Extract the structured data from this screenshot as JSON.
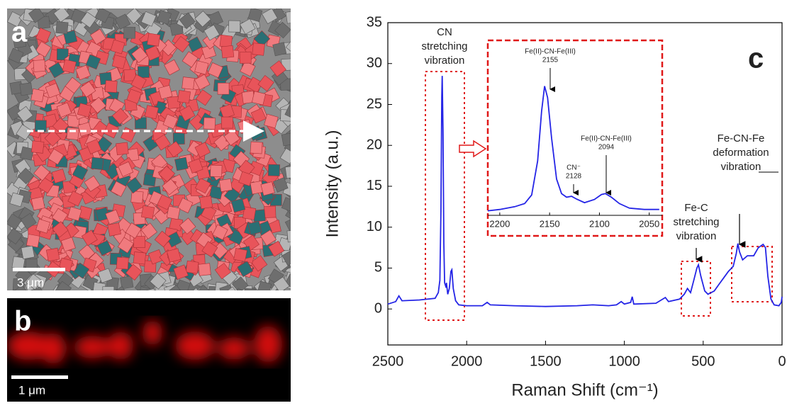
{
  "panels": {
    "a": {
      "label": "a",
      "scale_bar": "3 μm"
    },
    "b": {
      "label": "b",
      "scale_bar": "1 μm"
    },
    "c": {
      "label": "c"
    }
  },
  "chart_data": [
    {
      "type": "line",
      "x_label": "Raman Shift (cm⁻¹)",
      "y_label": "Intensity (a.u.)",
      "xlim": [
        2500,
        0
      ],
      "xticks": [
        2500,
        2000,
        1500,
        1000,
        500,
        0
      ],
      "ylim": [
        -4.4,
        35
      ],
      "yticks": [
        0,
        5,
        10,
        15,
        20,
        25,
        30,
        35
      ],
      "color": "#2424e6",
      "x": [
        2500,
        2450,
        2430,
        2410,
        2300,
        2200,
        2180,
        2170,
        2163,
        2158,
        2155,
        2150,
        2145,
        2140,
        2130,
        2128,
        2120,
        2110,
        2100,
        2094,
        2085,
        2070,
        2050,
        2000,
        1900,
        1870,
        1850,
        1700,
        1500,
        1300,
        1200,
        1100,
        1050,
        1020,
        1000,
        960,
        950,
        940,
        800,
        740,
        720,
        650,
        620,
        600,
        580,
        560,
        540,
        530,
        515,
        490,
        470,
        430,
        400,
        370,
        340,
        310,
        290,
        280,
        270,
        250,
        220,
        180,
        150,
        120,
        105,
        90,
        70,
        50,
        20,
        5,
        0
      ],
      "values": [
        0.6,
        0.9,
        1.6,
        1.0,
        1.1,
        1.3,
        2.0,
        3.5,
        12,
        26,
        28.5,
        22,
        8,
        3.2,
        2.6,
        3.2,
        1.8,
        2.5,
        4.6,
        4.8,
        2.5,
        1.0,
        0.5,
        0.4,
        0.4,
        0.8,
        0.5,
        0.4,
        0.3,
        0.4,
        0.5,
        0.4,
        0.5,
        0.9,
        0.6,
        0.8,
        1.5,
        0.6,
        0.7,
        1.4,
        0.9,
        1.2,
        1.8,
        2.5,
        2.0,
        3.5,
        5.0,
        5.4,
        4.0,
        2.2,
        1.8,
        2.2,
        3.0,
        3.8,
        4.6,
        5.2,
        6.8,
        8.0,
        7.0,
        6.0,
        6.5,
        6.5,
        7.5,
        7.9,
        7.5,
        4.0,
        1.2,
        0.5,
        0.4,
        0.8,
        1.5
      ],
      "annotations": [
        {
          "lines": [
            "CN",
            "stretching",
            "vibration"
          ]
        },
        {
          "lines": [
            "Fe-C",
            "stretching",
            "vibration"
          ]
        },
        {
          "lines": [
            "Fe-CN-Fe",
            "deformation",
            "vibration"
          ]
        }
      ]
    },
    {
      "type": "line",
      "xlim": [
        2212,
        2037
      ],
      "xticks": [
        2200,
        2150,
        2100,
        2050
      ],
      "ylim": [
        0,
        30
      ],
      "color": "#2424e6",
      "x": [
        2212,
        2200,
        2185,
        2175,
        2168,
        2162,
        2158,
        2155,
        2152,
        2148,
        2143,
        2138,
        2133,
        2128,
        2123,
        2115,
        2105,
        2098,
        2094,
        2088,
        2080,
        2070,
        2055,
        2040
      ],
      "values": [
        1.0,
        1.3,
        1.9,
        2.6,
        4.5,
        12,
        23,
        28.5,
        26,
        17,
        8,
        4.8,
        4.0,
        4.2,
        3.6,
        2.8,
        3.5,
        4.6,
        4.8,
        4.0,
        2.6,
        1.6,
        1.3,
        1.3
      ],
      "annotations": [
        {
          "lines": [
            "Fe(II)-CN-Fe(III)",
            "2155"
          ]
        },
        {
          "lines": [
            "CN⁻",
            "2128"
          ]
        },
        {
          "lines": [
            "Fe(II)-CN-Fe(III)",
            "2094"
          ]
        }
      ]
    }
  ]
}
